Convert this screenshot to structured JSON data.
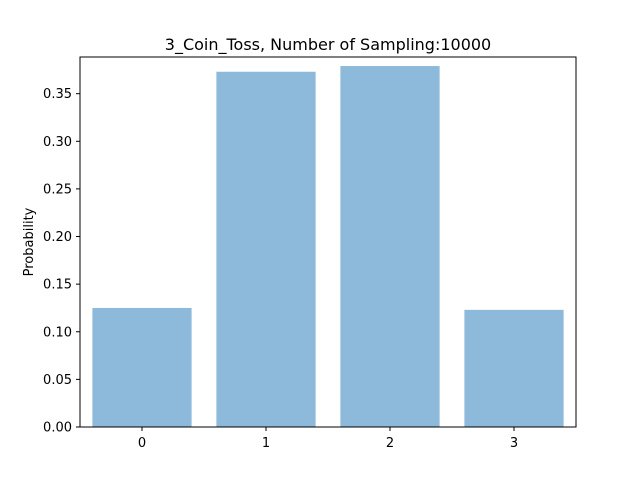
{
  "chart_data": {
    "type": "bar",
    "title": "3_Coin_Toss, Number of Sampling:10000",
    "xlabel": "",
    "ylabel": "Probability",
    "categories": [
      "0",
      "1",
      "2",
      "3"
    ],
    "values": [
      0.125,
      0.373,
      0.379,
      0.123
    ],
    "xlim": [
      -0.5,
      3.5
    ],
    "ylim": [
      0,
      0.3885
    ],
    "yticks": [
      0.0,
      0.05,
      0.1,
      0.15,
      0.2,
      0.25,
      0.3,
      0.35
    ],
    "ytick_labels": [
      "0.00",
      "0.05",
      "0.10",
      "0.15",
      "0.20",
      "0.25",
      "0.30",
      "0.35"
    ],
    "bar_color": "#8db9da",
    "grid": false,
    "legend": "none"
  }
}
